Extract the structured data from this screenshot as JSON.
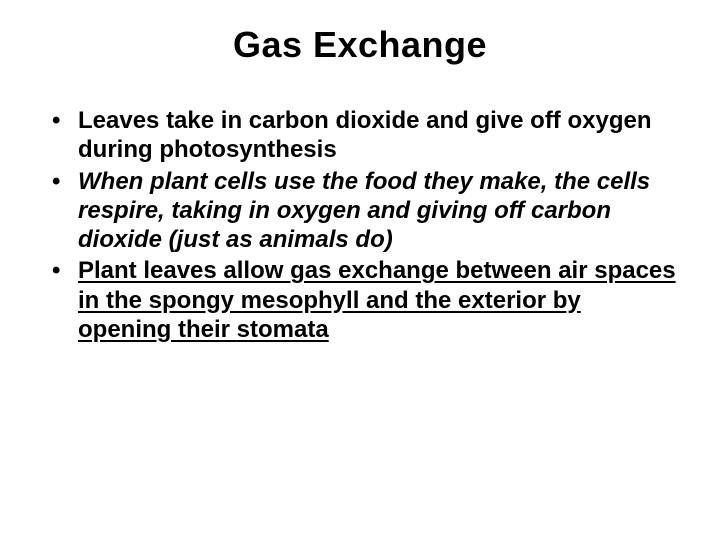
{
  "slide": {
    "title": "Gas Exchange",
    "bullets": [
      {
        "plain": "Leaves take in carbon dioxide and give off oxygen during photosynthesis"
      },
      {
        "italic": "When plant cells use the food they make, the cells respire, taking in oxygen and giving off carbon dioxide (just as animals do)"
      },
      {
        "u_part1": "Plant leaves allow gas exchange between air spaces in the spongy mesophyll and the exterior by opening their ",
        "u_word": "stomata"
      }
    ]
  },
  "style": {
    "background_color": "#ffffff",
    "text_color": "#000000",
    "title_fontsize": 36,
    "body_fontsize": 24,
    "font_family": "Arial",
    "font_weight": "bold"
  }
}
